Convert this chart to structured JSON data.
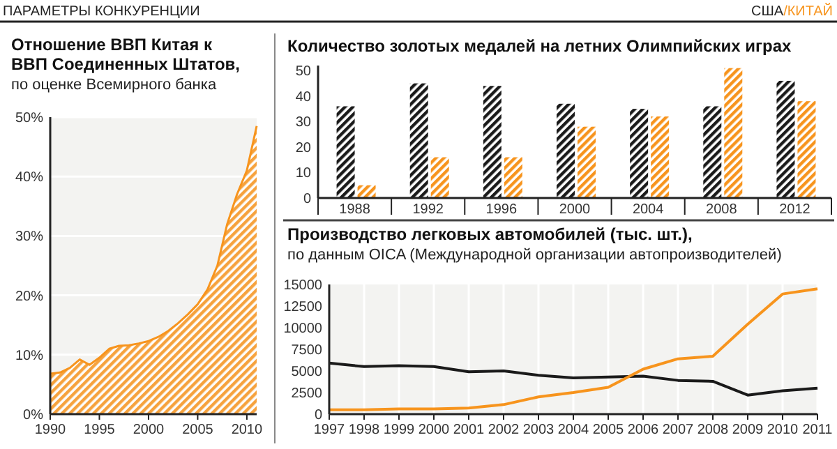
{
  "chart_data": [
    {
      "type": "area",
      "title": "Отношение ВВП Китая к ВВП Соединенных Штатов,",
      "subtitle": "по оценке Всемирного банка",
      "annotations": [
        "ПАРАМЕТРЫ КОНКУРЕНЦИИ",
        "США/КИТАЙ"
      ],
      "x": [
        1990,
        1991,
        1992,
        1993,
        1994,
        1995,
        1996,
        1997,
        1998,
        1999,
        2000,
        2001,
        2002,
        2003,
        2004,
        2005,
        2006,
        2007,
        2008,
        2009,
        2010,
        2011
      ],
      "series": [
        {
          "color": "#f7941d",
          "values": [
            6.8,
            7.0,
            7.8,
            9.2,
            8.3,
            9.5,
            11.0,
            11.5,
            11.6,
            11.9,
            12.3,
            13.0,
            14.0,
            15.3,
            16.8,
            18.5,
            21.0,
            25.0,
            32.0,
            37.0,
            41.0,
            48.5
          ]
        }
      ],
      "xlim": [
        1990,
        2011
      ],
      "xticks": [
        1990,
        1995,
        2000,
        2005,
        2010
      ],
      "ylim": [
        0,
        50
      ],
      "yticks": [
        {
          "value": 0,
          "label": "0%"
        },
        {
          "value": 10,
          "label": "10%"
        },
        {
          "value": 20,
          "label": "20%"
        },
        {
          "value": 30,
          "label": "30%"
        },
        {
          "value": 40,
          "label": "40%"
        },
        {
          "value": 50,
          "label": "50%"
        }
      ],
      "grid": "y"
    },
    {
      "type": "bar",
      "title": "Количество золотых медалей на летних Олимпийских играх",
      "categories": [
        "1988",
        "1992",
        "1996",
        "2000",
        "2004",
        "2008",
        "2012"
      ],
      "series": [
        {
          "color": "#1a1a1a",
          "values": [
            36,
            45,
            44,
            37,
            35,
            36,
            46
          ]
        },
        {
          "color": "#f7941d",
          "values": [
            5,
            16,
            16,
            28,
            32,
            51,
            38
          ]
        }
      ],
      "ylim": [
        0,
        52
      ],
      "yticks": [
        0,
        10,
        20,
        30,
        40,
        50
      ]
    },
    {
      "type": "line",
      "title": "Производство легковых автомобилей (тыс. шт.),",
      "subtitle": "по данным OICA (Международной организации автопроизводителей)",
      "x": [
        1997,
        1998,
        1999,
        2000,
        2001,
        2002,
        2003,
        2004,
        2005,
        2006,
        2007,
        2008,
        2009,
        2010,
        2011
      ],
      "series": [
        {
          "color": "#1a1a1a",
          "values": [
            5900,
            5500,
            5600,
            5500,
            4900,
            5000,
            4500,
            4200,
            4300,
            4400,
            3900,
            3800,
            2200,
            2700,
            3000
          ]
        },
        {
          "color": "#f7941d",
          "values": [
            500,
            500,
            600,
            600,
            700,
            1100,
            2000,
            2500,
            3100,
            5200,
            6400,
            6700,
            10400,
            13900,
            14500
          ]
        }
      ],
      "xlim": [
        1997,
        2011
      ],
      "xticks": [
        1997,
        1998,
        1999,
        2000,
        2001,
        2002,
        2003,
        2004,
        2005,
        2006,
        2007,
        2008,
        2009,
        2010,
        2011
      ],
      "ylim": [
        0,
        15000
      ],
      "yticks": [
        0,
        2500,
        5000,
        7500,
        10000,
        12500,
        15000
      ],
      "grid": "x"
    }
  ]
}
